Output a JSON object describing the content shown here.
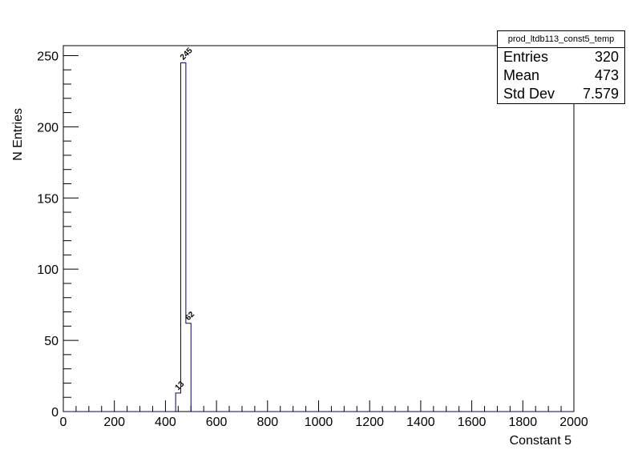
{
  "chart_data": {
    "type": "bar",
    "title": "",
    "xlabel": "Constant 5",
    "ylabel": "N Entries",
    "xlim": [
      0,
      2000
    ],
    "ylim": [
      0,
      257
    ],
    "x_ticks": [
      "0",
      "200",
      "400",
      "600",
      "800",
      "1000",
      "1200",
      "1400",
      "1600",
      "1800",
      "2000"
    ],
    "y_ticks": [
      "0",
      "50",
      "100",
      "150",
      "200",
      "250"
    ],
    "bin_width": 20,
    "bins": [
      {
        "x0": 440,
        "x1": 460,
        "value": 13,
        "label": "13"
      },
      {
        "x0": 460,
        "x1": 480,
        "value": 245,
        "label": "245"
      },
      {
        "x0": 480,
        "x1": 500,
        "value": 62,
        "label": "62"
      }
    ],
    "line_color": "#000080",
    "grid": false,
    "legend": "none"
  },
  "stats": {
    "title": "prod_ltdb113_const5_temp",
    "rows": [
      {
        "label": "Entries",
        "value": "320"
      },
      {
        "label": "Mean",
        "value": "473"
      },
      {
        "label": "Std Dev",
        "value": "7.579"
      }
    ]
  }
}
